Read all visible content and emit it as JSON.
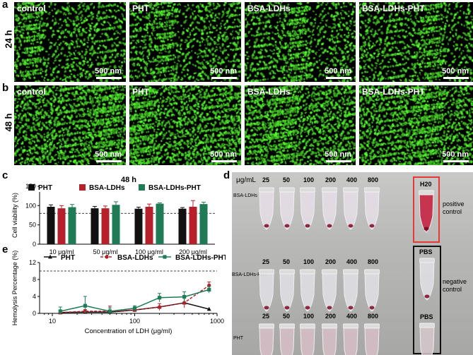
{
  "panel_letters": {
    "a": "a",
    "b": "b",
    "c": "c",
    "d": "d",
    "e": "e"
  },
  "row_labels": {
    "r24": "24 h",
    "r48": "48 h"
  },
  "micrographs": {
    "captions": [
      "control",
      "PHT",
      "BSA-LDHs",
      "BSA-LDHs-PHT"
    ],
    "scale": "500 nm"
  },
  "chart_data": [
    {
      "type": "bar",
      "title": "48 h",
      "ylabel": "Cell viability (%)",
      "ylim": [
        0,
        150
      ],
      "yticks": [
        "0",
        "50",
        "100",
        "150"
      ],
      "categories": [
        "10 μg/ml",
        "50 μg/ml",
        "100 μg/ml",
        "200 μg/ml"
      ],
      "reference_line": 80,
      "series": [
        {
          "name": "PHT",
          "color": "#111111",
          "values": [
            97,
            93,
            92,
            92
          ],
          "errors": [
            5,
            5,
            4,
            3
          ]
        },
        {
          "name": "BSA-LDHs",
          "color": "#b5202a",
          "values": [
            93,
            93,
            97,
            97
          ],
          "errors": [
            7,
            6,
            7,
            16
          ]
        },
        {
          "name": "BSA-LDHs-PHT",
          "color": "#1e7b55",
          "values": [
            96,
            102,
            105,
            104
          ],
          "errors": [
            7,
            8,
            2,
            5
          ]
        }
      ]
    },
    {
      "type": "line",
      "ylabel": "Hemolysis Percentage (%)",
      "xlabel": "Concentration of LDH (μg/ml)",
      "xscale": "log",
      "xlim": [
        7,
        1000
      ],
      "xticks": [
        "10",
        "100",
        "1000"
      ],
      "ylim": [
        0,
        12
      ],
      "yticks": [
        "0",
        "4",
        "8",
        "12"
      ],
      "reference_line": 10,
      "series": [
        {
          "name": "PHT",
          "color": "#111111",
          "style": "solid",
          "marker": "triangle",
          "x": [
            12.5,
            25,
            50,
            100,
            200,
            400,
            800
          ],
          "y": [
            0.2,
            0.3,
            0.3,
            0.8,
            1.5,
            2.5,
            1.0
          ],
          "errors": [
            0,
            0,
            0,
            0,
            0,
            0,
            0
          ]
        },
        {
          "name": "BSA-LDHs",
          "color": "#b5202a",
          "style": "dashed",
          "marker": "circle",
          "x": [
            12.5,
            25,
            50,
            100,
            200,
            400,
            800
          ],
          "y": [
            0.2,
            0.5,
            0.5,
            0.8,
            1.5,
            2.5,
            6.6
          ],
          "errors": [
            0.5,
            0.4,
            1.2,
            0.5,
            0.8,
            1.2,
            0.8
          ]
        },
        {
          "name": "BSA-LDHs-PHT",
          "color": "#1e7b55",
          "style": "solid",
          "marker": "square",
          "x": [
            12.5,
            25,
            50,
            100,
            200,
            400,
            800
          ],
          "y": [
            0.5,
            1.8,
            0.5,
            1.2,
            3.7,
            3.9,
            5.6
          ],
          "errors": [
            1.0,
            2.2,
            0.8,
            0.6,
            1.0,
            1.2,
            0.8
          ]
        }
      ]
    }
  ],
  "photo": {
    "unit_label": "μg/mL",
    "concentrations": [
      "25",
      "50",
      "100",
      "200",
      "400",
      "800"
    ],
    "row_labels": [
      "BSA-LDHs",
      "BSA-LDHs-PHT",
      "PHT"
    ],
    "controls": [
      "H20",
      "PBS",
      "PBS"
    ],
    "positive_label": "positive\ncontrol",
    "negative_label": "negative\ncontrol",
    "positive_color": "#e53935",
    "negative_color": "#111111"
  }
}
